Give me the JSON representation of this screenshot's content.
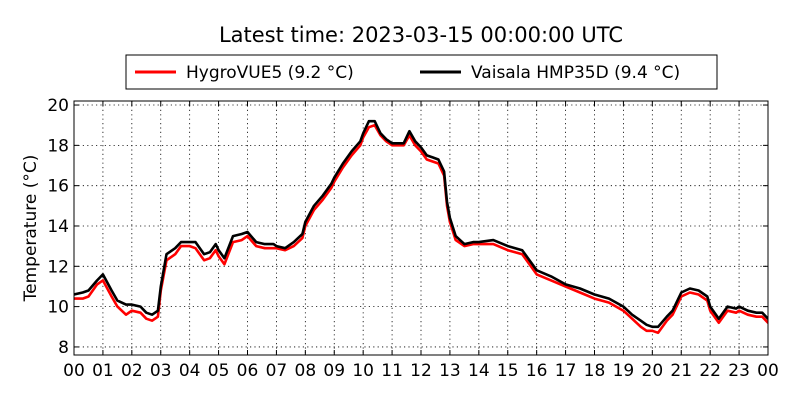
{
  "chart_data": {
    "type": "line",
    "title": "Latest time: 2023-03-15 00:00:00 UTC",
    "xlabel": "",
    "ylabel": "Temperature (°C)",
    "xlim": [
      0,
      24
    ],
    "ylim": [
      7.6,
      20.2
    ],
    "x_tick_labels": [
      "00",
      "01",
      "02",
      "03",
      "04",
      "05",
      "06",
      "07",
      "08",
      "09",
      "10",
      "11",
      "12",
      "13",
      "14",
      "15",
      "16",
      "17",
      "18",
      "19",
      "20",
      "21",
      "22",
      "23",
      "00"
    ],
    "y_ticks": [
      8,
      10,
      12,
      14,
      16,
      18,
      20
    ],
    "grid": true,
    "legend_position": "top",
    "series": [
      {
        "name": "HygroVUE5 (9.2 °C)",
        "color": "#ff0000",
        "x": [
          0,
          0.3,
          0.5,
          0.8,
          1.0,
          1.3,
          1.5,
          1.8,
          2.0,
          2.3,
          2.5,
          2.7,
          2.9,
          3.0,
          3.2,
          3.5,
          3.7,
          3.9,
          4.0,
          4.2,
          4.5,
          4.7,
          4.9,
          5.0,
          5.2,
          5.5,
          5.8,
          6.0,
          6.3,
          6.6,
          6.9,
          7.0,
          7.3,
          7.6,
          7.9,
          8.0,
          8.3,
          8.6,
          8.9,
          9.0,
          9.3,
          9.6,
          9.9,
          10.0,
          10.2,
          10.4,
          10.6,
          10.8,
          11.0,
          11.2,
          11.4,
          11.6,
          11.8,
          12.0,
          12.2,
          12.4,
          12.6,
          12.8,
          12.9,
          13.0,
          13.2,
          13.5,
          13.8,
          14.0,
          14.5,
          15.0,
          15.5,
          15.8,
          16.0,
          16.5,
          17.0,
          17.5,
          18.0,
          18.5,
          19.0,
          19.3,
          19.6,
          19.8,
          20.0,
          20.2,
          20.5,
          20.7,
          20.9,
          21.0,
          21.3,
          21.6,
          21.9,
          22.0,
          22.3,
          22.6,
          22.9,
          23.0,
          23.3,
          23.6,
          23.8,
          24.0
        ],
        "values": [
          10.4,
          10.4,
          10.5,
          11.1,
          11.3,
          10.5,
          10.0,
          9.6,
          9.8,
          9.7,
          9.4,
          9.3,
          9.5,
          10.8,
          12.3,
          12.6,
          13.0,
          13.0,
          13.0,
          12.9,
          12.3,
          12.4,
          12.8,
          12.5,
          12.1,
          13.2,
          13.3,
          13.5,
          13.0,
          12.9,
          12.9,
          12.9,
          12.8,
          13.0,
          13.4,
          14.0,
          14.8,
          15.3,
          15.9,
          16.2,
          16.9,
          17.5,
          18.0,
          18.4,
          18.9,
          19.0,
          18.5,
          18.2,
          18.0,
          18.0,
          18.0,
          18.5,
          18.0,
          17.7,
          17.3,
          17.2,
          17.1,
          16.5,
          15.0,
          14.2,
          13.3,
          13.0,
          13.1,
          13.1,
          13.1,
          12.8,
          12.6,
          12.0,
          11.6,
          11.3,
          11.0,
          10.7,
          10.4,
          10.2,
          9.8,
          9.4,
          9.0,
          8.8,
          8.8,
          8.7,
          9.3,
          9.6,
          10.2,
          10.5,
          10.7,
          10.6,
          10.3,
          9.8,
          9.2,
          9.8,
          9.7,
          9.8,
          9.6,
          9.5,
          9.5,
          9.2
        ]
      },
      {
        "name": "Vaisala HMP35D (9.4 °C)",
        "color": "#000000",
        "x": [
          0,
          0.3,
          0.5,
          0.8,
          1.0,
          1.3,
          1.5,
          1.8,
          2.0,
          2.3,
          2.5,
          2.7,
          2.9,
          3.0,
          3.2,
          3.5,
          3.7,
          3.9,
          4.0,
          4.2,
          4.5,
          4.7,
          4.9,
          5.0,
          5.2,
          5.5,
          5.8,
          6.0,
          6.3,
          6.6,
          6.9,
          7.0,
          7.3,
          7.6,
          7.9,
          8.0,
          8.3,
          8.6,
          8.9,
          9.0,
          9.3,
          9.6,
          9.9,
          10.0,
          10.2,
          10.4,
          10.6,
          10.8,
          11.0,
          11.2,
          11.4,
          11.6,
          11.8,
          12.0,
          12.2,
          12.4,
          12.6,
          12.8,
          12.9,
          13.0,
          13.2,
          13.5,
          13.8,
          14.0,
          14.5,
          15.0,
          15.5,
          15.8,
          16.0,
          16.5,
          17.0,
          17.5,
          18.0,
          18.5,
          19.0,
          19.3,
          19.6,
          19.8,
          20.0,
          20.2,
          20.5,
          20.7,
          20.9,
          21.0,
          21.3,
          21.6,
          21.9,
          22.0,
          22.3,
          22.6,
          22.9,
          23.0,
          23.3,
          23.6,
          23.8,
          24.0
        ],
        "values": [
          10.6,
          10.7,
          10.8,
          11.3,
          11.6,
          10.8,
          10.3,
          10.1,
          10.1,
          10.0,
          9.7,
          9.6,
          9.8,
          11.0,
          12.6,
          12.9,
          13.2,
          13.2,
          13.2,
          13.2,
          12.6,
          12.7,
          13.1,
          12.8,
          12.4,
          13.5,
          13.6,
          13.7,
          13.2,
          13.1,
          13.1,
          13.0,
          12.9,
          13.2,
          13.6,
          14.2,
          15.0,
          15.5,
          16.1,
          16.4,
          17.1,
          17.7,
          18.2,
          18.6,
          19.2,
          19.2,
          18.6,
          18.3,
          18.1,
          18.1,
          18.1,
          18.7,
          18.2,
          17.9,
          17.5,
          17.4,
          17.3,
          16.7,
          15.2,
          14.4,
          13.5,
          13.1,
          13.2,
          13.2,
          13.3,
          13.0,
          12.8,
          12.2,
          11.8,
          11.5,
          11.1,
          10.9,
          10.6,
          10.4,
          10.0,
          9.6,
          9.3,
          9.1,
          9.0,
          9.0,
          9.5,
          9.8,
          10.4,
          10.7,
          10.9,
          10.8,
          10.5,
          10.0,
          9.4,
          10.0,
          9.9,
          10.0,
          9.8,
          9.7,
          9.7,
          9.4
        ]
      }
    ]
  }
}
